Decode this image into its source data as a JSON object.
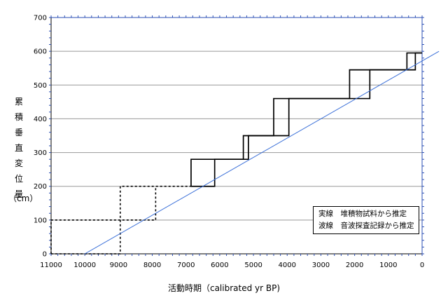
{
  "chart_data": {
    "type": "line",
    "xlabel": "活動時期（calibrated yr BP)",
    "ylabel_chars": [
      "累",
      "積",
      "垂",
      "直",
      "変",
      "位",
      "量"
    ],
    "ylabel_unit": "（cm）",
    "xlim": [
      11000,
      0
    ],
    "ylim": [
      0,
      700
    ],
    "x_ticks": [
      11000,
      10000,
      9000,
      8000,
      7000,
      6000,
      5000,
      4000,
      3000,
      2000,
      1000,
      0
    ],
    "y_ticks": [
      0,
      100,
      200,
      300,
      400,
      500,
      600,
      700
    ],
    "grid": "horizontal",
    "legend": {
      "placement": "bottom-right",
      "lines": [
        "実線　堆積物試料から推定",
        "波線　音波探査記録から推定"
      ]
    },
    "colors": {
      "trend": "#3a6fd8",
      "steps": "#000000",
      "axis_ticks": "#2b4fb5",
      "grid": "#999999"
    },
    "series": [
      {
        "style": "solid",
        "upper": [
          [
            6850,
            200
          ],
          [
            6850,
            280
          ],
          [
            5300,
            280
          ],
          [
            5300,
            350
          ],
          [
            4400,
            350
          ],
          [
            4400,
            460
          ],
          [
            2150,
            460
          ],
          [
            2150,
            545
          ],
          [
            450,
            545
          ],
          [
            450,
            595
          ],
          [
            0,
            595
          ]
        ],
        "lower": [
          [
            6850,
            200
          ],
          [
            6150,
            200
          ],
          [
            6150,
            280
          ],
          [
            5150,
            280
          ],
          [
            5150,
            350
          ],
          [
            3950,
            350
          ],
          [
            3950,
            460
          ],
          [
            1550,
            460
          ],
          [
            1550,
            545
          ],
          [
            200,
            545
          ],
          [
            200,
            595
          ],
          [
            0,
            595
          ]
        ]
      },
      {
        "style": "dashed",
        "upper": [
          [
            11000,
            0
          ],
          [
            11000,
            100
          ],
          [
            8950,
            100
          ],
          [
            8950,
            200
          ],
          [
            6850,
            200
          ]
        ],
        "lower": [
          [
            11000,
            0
          ],
          [
            8950,
            0
          ],
          [
            8950,
            100
          ],
          [
            7900,
            100
          ],
          [
            7900,
            200
          ]
        ]
      }
    ],
    "trendline": {
      "style": "solid",
      "points": [
        [
          10000,
          0
        ],
        [
          -500,
          600
        ]
      ]
    }
  }
}
